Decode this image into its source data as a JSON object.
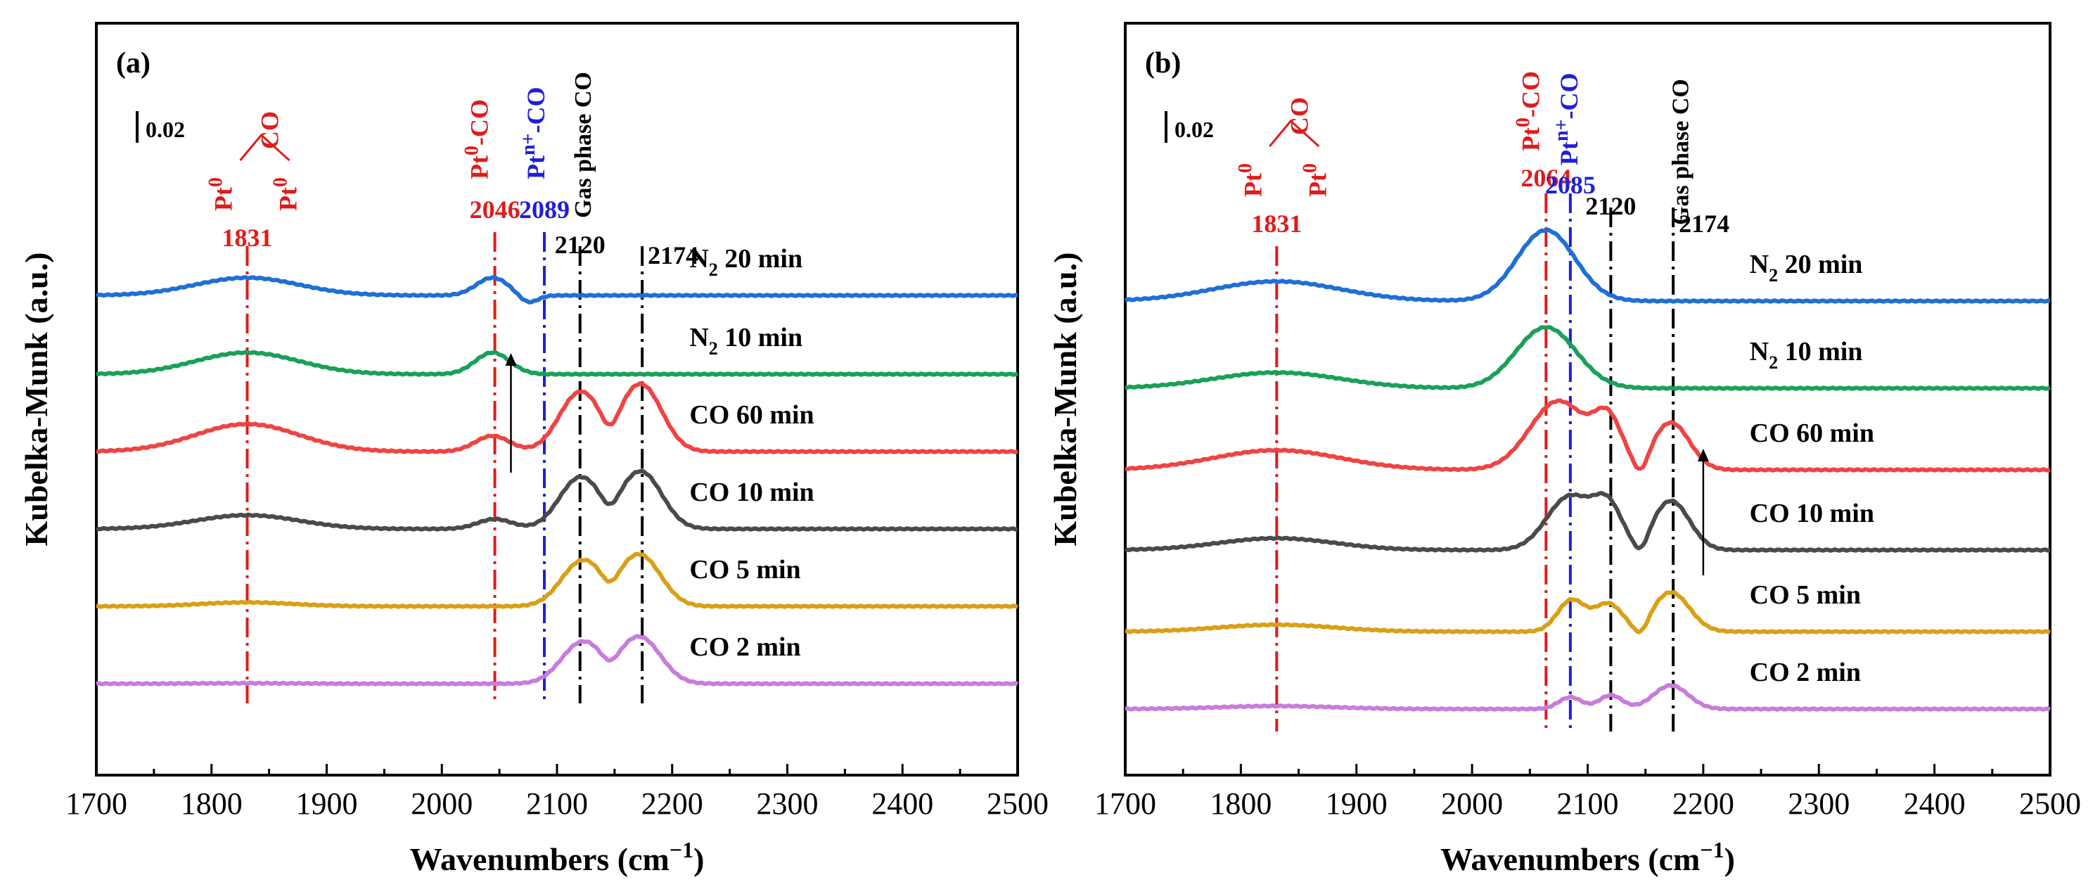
{
  "chart_data": [
    {
      "type": "line",
      "panel_label": "(a)",
      "xlabel": "Wavenumbers (cm−1)",
      "ylabel": "Kubelka-Munk (a.u.)",
      "xlim": [
        1700,
        2500
      ],
      "xticks": [
        1700,
        1800,
        1900,
        2000,
        2100,
        2200,
        2300,
        2400,
        2500
      ],
      "scale_bar": "0.02",
      "arrow": {
        "x": 2060,
        "from": 2,
        "to": 4
      },
      "vlines": [
        {
          "x": 1831,
          "color": "#e01b1b",
          "style": "dashdot",
          "label": "1831",
          "assign": "Pt0-CO-Pt0"
        },
        {
          "x": 2046,
          "color": "#e01b1b",
          "style": "dashdot",
          "label": "2046",
          "assign": "Pt0-CO"
        },
        {
          "x": 2089,
          "color": "#1f1fd6",
          "style": "dashdot",
          "label": "2089",
          "assign": "Ptn+-CO"
        },
        {
          "x": 2120,
          "color": "#000000",
          "style": "dashdot",
          "label": "2120",
          "assign": ""
        },
        {
          "x": 2174,
          "color": "#000000",
          "style": "dashdot",
          "label": "2174",
          "assign": "Gas phase CO"
        }
      ],
      "series": [
        {
          "name": "CO 2 min",
          "color": "#c77ddb",
          "baseline": 0,
          "peaks": [
            [
              1831,
              0.0005,
              40
            ],
            [
              2122,
              0.042,
              18
            ],
            [
              2172,
              0.047,
              18
            ],
            [
              2146,
              -0.01,
              7
            ]
          ]
        },
        {
          "name": "CO 5 min",
          "color": "#d9a017",
          "baseline": 1,
          "peaks": [
            [
              1831,
              0.004,
              40
            ],
            [
              2122,
              0.046,
              18
            ],
            [
              2172,
              0.052,
              18
            ],
            [
              2146,
              -0.012,
              7
            ]
          ]
        },
        {
          "name": "CO 10 min",
          "color": "#4a4a4a",
          "baseline": 2,
          "peaks": [
            [
              1831,
              0.014,
              45
            ],
            [
              2046,
              0.01,
              15
            ],
            [
              2120,
              0.052,
              18
            ],
            [
              2173,
              0.058,
              18
            ],
            [
              2146,
              -0.012,
              7
            ]
          ]
        },
        {
          "name": "CO 60 min",
          "color": "#ef4444",
          "baseline": 3,
          "peaks": [
            [
              1831,
              0.028,
              45
            ],
            [
              2044,
              0.016,
              15
            ],
            [
              2120,
              0.06,
              18
            ],
            [
              2173,
              0.068,
              18
            ],
            [
              2146,
              -0.016,
              7
            ]
          ]
        },
        {
          "name": "N₂ 10 min",
          "color": "#1aa05a",
          "baseline": 4,
          "peaks": [
            [
              1831,
              0.022,
              45
            ],
            [
              2044,
              0.022,
              15
            ]
          ]
        },
        {
          "name": "N₂ 20 min",
          "color": "#1f6fd6",
          "baseline": 5,
          "peaks": [
            [
              1831,
              0.018,
              45
            ],
            [
              2044,
              0.018,
              14
            ],
            [
              2075,
              -0.008,
              8
            ]
          ]
        }
      ],
      "assign_labels": {
        "bridge_pt_left": "Pt0",
        "bridge_co": "CO",
        "bridge_pt_right": "Pt0",
        "linear_pt0": "Pt0-CO",
        "linear_ptn": "Ptn+-CO",
        "gas_phase": "Gas phase CO"
      }
    },
    {
      "type": "line",
      "panel_label": "(b)",
      "xlabel": "Wavenumbers (cm−1)",
      "ylabel": "Kubelka-Munk (a.u.)",
      "xlim": [
        1700,
        2500
      ],
      "xticks": [
        1700,
        1800,
        1900,
        2000,
        2100,
        2200,
        2300,
        2400,
        2500
      ],
      "scale_bar": "0.02",
      "arrow": {
        "x": 2200,
        "from": 1,
        "to": 3
      },
      "vlines": [
        {
          "x": 1831,
          "color": "#e01b1b",
          "style": "dashdot",
          "label": "1831",
          "assign": "Pt0-CO-Pt0"
        },
        {
          "x": 2064,
          "color": "#e01b1b",
          "style": "dashdot",
          "label": "2064",
          "assign": "Pt0-CO"
        },
        {
          "x": 2085,
          "color": "#1f1fd6",
          "style": "dashdot",
          "label": "2085",
          "assign": "Ptn+-CO"
        },
        {
          "x": 2120,
          "color": "#000000",
          "style": "dashdot",
          "label": "2120",
          "assign": ""
        },
        {
          "x": 2174,
          "color": "#000000",
          "style": "dashdot",
          "label": "2174",
          "assign": "Gas phase CO"
        }
      ],
      "series": [
        {
          "name": "CO 2 min",
          "color": "#c77ddb",
          "baseline": 0,
          "peaks": [
            [
              1831,
              0.003,
              50
            ],
            [
              2085,
              0.012,
              10
            ],
            [
              2120,
              0.014,
              10
            ],
            [
              2172,
              0.024,
              15
            ]
          ]
        },
        {
          "name": "CO 5 min",
          "color": "#d9a017",
          "baseline": 1,
          "peaks": [
            [
              1831,
              0.007,
              50
            ],
            [
              2086,
              0.032,
              12
            ],
            [
              2118,
              0.028,
              12
            ],
            [
              2172,
              0.04,
              16
            ],
            [
              2146,
              -0.012,
              6
            ]
          ]
        },
        {
          "name": "CO 10 min",
          "color": "#4a4a4a",
          "baseline": 2,
          "peaks": [
            [
              1831,
              0.012,
              50
            ],
            [
              2085,
              0.055,
              20
            ],
            [
              2118,
              0.04,
              12
            ],
            [
              2172,
              0.05,
              16
            ],
            [
              2146,
              -0.014,
              6
            ]
          ]
        },
        {
          "name": "CO 60 min",
          "color": "#ef4444",
          "baseline": 3,
          "peaks": [
            [
              1831,
              0.02,
              55
            ],
            [
              2075,
              0.07,
              25
            ],
            [
              2118,
              0.045,
              12
            ],
            [
              2172,
              0.048,
              16
            ],
            [
              2146,
              -0.016,
              6
            ]
          ]
        },
        {
          "name": "N₂ 10 min",
          "color": "#1aa05a",
          "baseline": 4,
          "peaks": [
            [
              1831,
              0.016,
              55
            ],
            [
              2064,
              0.062,
              26
            ]
          ]
        },
        {
          "name": "N₂ 20 min",
          "color": "#1f6fd6",
          "baseline": 5,
          "peaks": [
            [
              1831,
              0.02,
              55
            ],
            [
              2064,
              0.072,
              25
            ]
          ]
        }
      ],
      "assign_labels": {
        "bridge_pt_left": "Pt0",
        "bridge_co": "CO",
        "bridge_pt_right": "Pt0",
        "linear_pt0": "Pt0-CO",
        "linear_ptn": "Ptn+-CO",
        "gas_phase": "Gas phase CO"
      }
    }
  ]
}
